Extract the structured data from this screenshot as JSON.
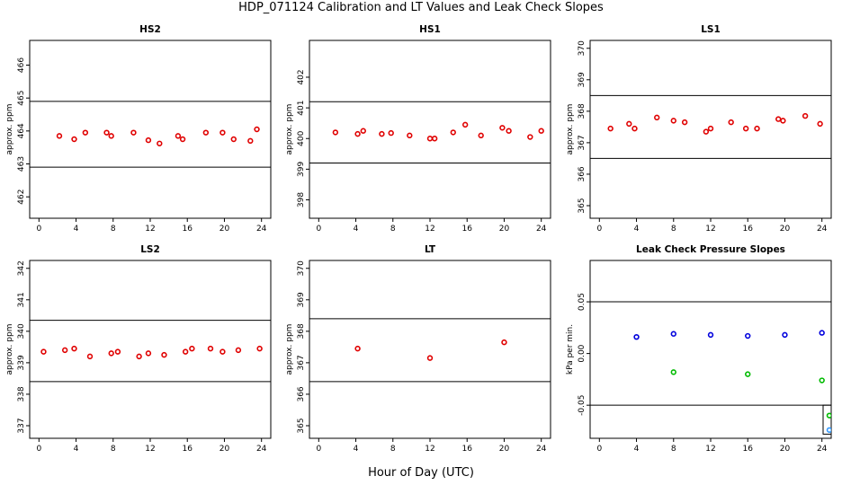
{
  "page": {
    "title": "HDP_071124  Calibration and LT Values and Leak Check Slopes",
    "xlabel": "Hour of Day (UTC)"
  },
  "chart_data": [
    {
      "type": "scatter",
      "title": "HS2",
      "ylabel": "approx. ppm",
      "xlim": [
        -1,
        25
      ],
      "ylim": [
        461.35,
        466.75
      ],
      "xticks": [
        "0",
        "4",
        "8",
        "12",
        "16",
        "20",
        "24"
      ],
      "xtick_values": [
        0,
        4,
        8,
        12,
        16,
        20,
        24
      ],
      "yticks": [
        "462",
        "463",
        "464",
        "465",
        "466"
      ],
      "ytick_values": [
        462,
        463,
        464,
        465,
        466
      ],
      "hlines": [
        464.9,
        462.9
      ],
      "series": [
        {
          "color": "#e00000",
          "x": [
            2.2,
            3.8,
            5.0,
            7.3,
            7.8,
            10.2,
            11.8,
            13.0,
            15.0,
            15.5,
            18.0,
            19.8,
            21.0,
            22.8,
            23.5
          ],
          "y": [
            463.85,
            463.75,
            463.95,
            463.95,
            463.85,
            463.95,
            463.72,
            463.62,
            463.85,
            463.75,
            463.95,
            463.95,
            463.75,
            463.7,
            464.05
          ]
        }
      ]
    },
    {
      "type": "scatter",
      "title": "HS1",
      "ylabel": "approx. ppm",
      "xlim": [
        -1,
        25
      ],
      "ylim": [
        397.4,
        403.2
      ],
      "xticks": [
        "0",
        "4",
        "8",
        "12",
        "16",
        "20",
        "24"
      ],
      "xtick_values": [
        0,
        4,
        8,
        12,
        16,
        20,
        24
      ],
      "yticks": [
        "398",
        "399",
        "400",
        "401",
        "402"
      ],
      "ytick_values": [
        398,
        399,
        400,
        401,
        402
      ],
      "hlines": [
        401.2,
        399.2
      ],
      "series": [
        {
          "color": "#e00000",
          "x": [
            1.8,
            4.2,
            4.8,
            6.8,
            7.8,
            9.8,
            12.0,
            12.5,
            14.5,
            15.8,
            17.5,
            19.8,
            20.5,
            22.8,
            24.0
          ],
          "y": [
            400.2,
            400.15,
            400.25,
            400.15,
            400.18,
            400.1,
            400.0,
            400.0,
            400.2,
            400.45,
            400.1,
            400.35,
            400.25,
            400.05,
            400.25
          ]
        }
      ]
    },
    {
      "type": "scatter",
      "title": "LS1",
      "ylabel": "approx. ppm",
      "xlim": [
        -1,
        25
      ],
      "ylim": [
        364.6,
        370.25
      ],
      "xticks": [
        "0",
        "4",
        "8",
        "12",
        "16",
        "20",
        "24"
      ],
      "xtick_values": [
        0,
        4,
        8,
        12,
        16,
        20,
        24
      ],
      "yticks": [
        "365",
        "366",
        "367",
        "368",
        "369",
        "370"
      ],
      "ytick_values": [
        365,
        366,
        367,
        368,
        369,
        370
      ],
      "hlines": [
        368.5,
        366.5
      ],
      "series": [
        {
          "color": "#e00000",
          "x": [
            1.2,
            3.2,
            3.8,
            6.2,
            8.0,
            9.2,
            11.5,
            12.0,
            14.2,
            15.8,
            17.0,
            19.3,
            19.8,
            22.2,
            23.8
          ],
          "y": [
            367.45,
            367.6,
            367.45,
            367.8,
            367.7,
            367.65,
            367.35,
            367.45,
            367.65,
            367.45,
            367.45,
            367.75,
            367.7,
            367.85,
            367.6
          ]
        }
      ]
    },
    {
      "type": "scatter",
      "title": "LS2",
      "ylabel": "approx. ppm",
      "xlim": [
        -1,
        25
      ],
      "ylim": [
        336.6,
        342.25
      ],
      "xticks": [
        "0",
        "4",
        "8",
        "12",
        "16",
        "20",
        "24"
      ],
      "xtick_values": [
        0,
        4,
        8,
        12,
        16,
        20,
        24
      ],
      "yticks": [
        "337",
        "338",
        "339",
        "340",
        "341",
        "342"
      ],
      "ytick_values": [
        337,
        338,
        339,
        340,
        341,
        342
      ],
      "hlines": [
        340.35,
        338.4
      ],
      "series": [
        {
          "color": "#e00000",
          "x": [
            0.5,
            2.8,
            3.8,
            5.5,
            7.8,
            8.5,
            10.8,
            11.8,
            13.5,
            15.8,
            16.5,
            18.5,
            19.8,
            21.5,
            23.8
          ],
          "y": [
            339.35,
            339.4,
            339.45,
            339.2,
            339.3,
            339.35,
            339.2,
            339.3,
            339.25,
            339.35,
            339.45,
            339.45,
            339.35,
            339.4,
            339.45
          ]
        }
      ]
    },
    {
      "type": "scatter",
      "title": "LT",
      "ylabel": "approx. ppm",
      "xlim": [
        -1,
        25
      ],
      "ylim": [
        364.6,
        370.25
      ],
      "xticks": [
        "0",
        "4",
        "8",
        "12",
        "16",
        "20",
        "24"
      ],
      "xtick_values": [
        0,
        4,
        8,
        12,
        16,
        20,
        24
      ],
      "yticks": [
        "365",
        "366",
        "367",
        "368",
        "369",
        "370"
      ],
      "ytick_values": [
        365,
        366,
        367,
        368,
        369,
        370
      ],
      "hlines": [
        368.4,
        366.4
      ],
      "series": [
        {
          "color": "#e00000",
          "x": [
            4.2,
            12.0,
            20.0
          ],
          "y": [
            367.45,
            367.15,
            367.65
          ]
        }
      ]
    },
    {
      "type": "scatter",
      "title": "Leak Check Pressure Slopes",
      "ylabel": "kPa per min.",
      "xlim": [
        -1,
        25
      ],
      "ylim": [
        -0.082,
        0.09
      ],
      "xticks": [
        "0",
        "4",
        "8",
        "12",
        "16",
        "20",
        "24"
      ],
      "xtick_values": [
        0,
        4,
        8,
        12,
        16,
        20,
        24
      ],
      "yticks": [
        "-0.05",
        "0.00",
        "0.05"
      ],
      "ytick_values": [
        -0.05,
        0.0,
        0.05
      ],
      "hlines": [
        0.05,
        -0.05
      ],
      "series": [
        {
          "color": "#0000dd",
          "x": [
            4,
            8,
            12,
            16,
            20,
            24
          ],
          "y": [
            0.016,
            0.019,
            0.018,
            0.017,
            0.018,
            0.02
          ]
        },
        {
          "color": "#00bb00",
          "x": [
            8,
            16,
            24,
            24.8
          ],
          "y": [
            -0.018,
            -0.02,
            -0.026,
            -0.06
          ]
        },
        {
          "color": "#3399ff",
          "x": [
            24.8
          ],
          "y": [
            -0.074
          ]
        }
      ]
    }
  ]
}
